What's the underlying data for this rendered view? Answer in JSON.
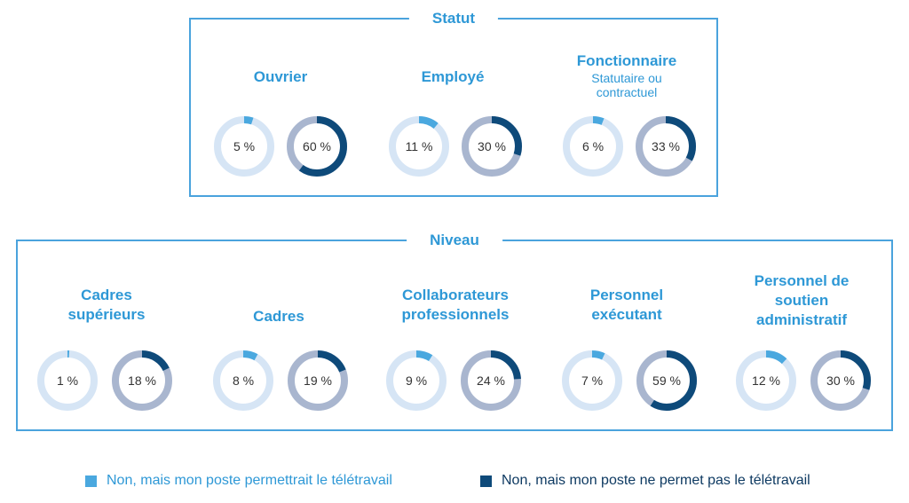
{
  "colors": {
    "frame": "#4aa3dd",
    "title": "#2e98d6",
    "series1_fill": "#4aa8df",
    "series1_track": "#d6e5f5",
    "series2_fill": "#0e4a7a",
    "series2_track": "#a9b6cf"
  },
  "chart_data": {
    "type": "donut",
    "series": [
      {
        "name": "Non, mais mon poste permettrait le télétravail"
      },
      {
        "name": "Non, mais mon poste ne permet pas le télétravail"
      }
    ],
    "panels": [
      {
        "title": "Statut",
        "groups": [
          {
            "title": "Ouvrier",
            "subtitle": "",
            "values": [
              5,
              60
            ],
            "labels": [
              "5 %",
              "60 %"
            ]
          },
          {
            "title": "Employé",
            "subtitle": "",
            "values": [
              11,
              30
            ],
            "labels": [
              "11 %",
              "30 %"
            ]
          },
          {
            "title": "Fonctionnaire",
            "subtitle": "Statutaire ou contractuel",
            "values": [
              6,
              33
            ],
            "labels": [
              "6 %",
              "33 %"
            ]
          }
        ]
      },
      {
        "title": "Niveau",
        "groups": [
          {
            "title": "Cadres supérieurs",
            "subtitle": "",
            "values": [
              1,
              18
            ],
            "labels": [
              "1 %",
              "18 %"
            ]
          },
          {
            "title": "Cadres",
            "subtitle": "",
            "values": [
              8,
              19
            ],
            "labels": [
              "8 %",
              "19 %"
            ]
          },
          {
            "title": "Collaborateurs professionnels",
            "subtitle": "",
            "values": [
              9,
              24
            ],
            "labels": [
              "9 %",
              "24 %"
            ]
          },
          {
            "title": "Personnel exécutant",
            "subtitle": "",
            "values": [
              7,
              59
            ],
            "labels": [
              "7 %",
              "59 %"
            ]
          },
          {
            "title": "Personnel de soutien administratif",
            "subtitle": "",
            "values": [
              12,
              30
            ],
            "labels": [
              "12 %",
              "30 %"
            ]
          }
        ]
      }
    ]
  }
}
